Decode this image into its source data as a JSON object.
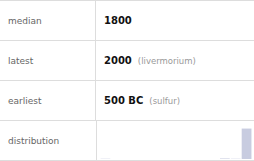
{
  "chart_data": {
    "type": "bar",
    "annotations": [
      [
        "median",
        "1800"
      ],
      [
        "latest",
        "2000",
        "(livermorium)"
      ],
      [
        "earliest",
        "500 BC",
        "(sulfur)"
      ],
      [
        "distribution"
      ]
    ],
    "categories": [
      null,
      null,
      null,
      null,
      null,
      null,
      null,
      null,
      null,
      null,
      null,
      null,
      null,
      null
    ],
    "values": [
      1,
      0,
      0,
      0,
      0,
      0,
      0,
      0,
      0,
      0,
      0,
      2,
      1,
      113
    ],
    "color": "#c8cce0",
    "ylim": [
      0,
      129.95
    ],
    "grid": false,
    "tick_labels": false
  }
}
